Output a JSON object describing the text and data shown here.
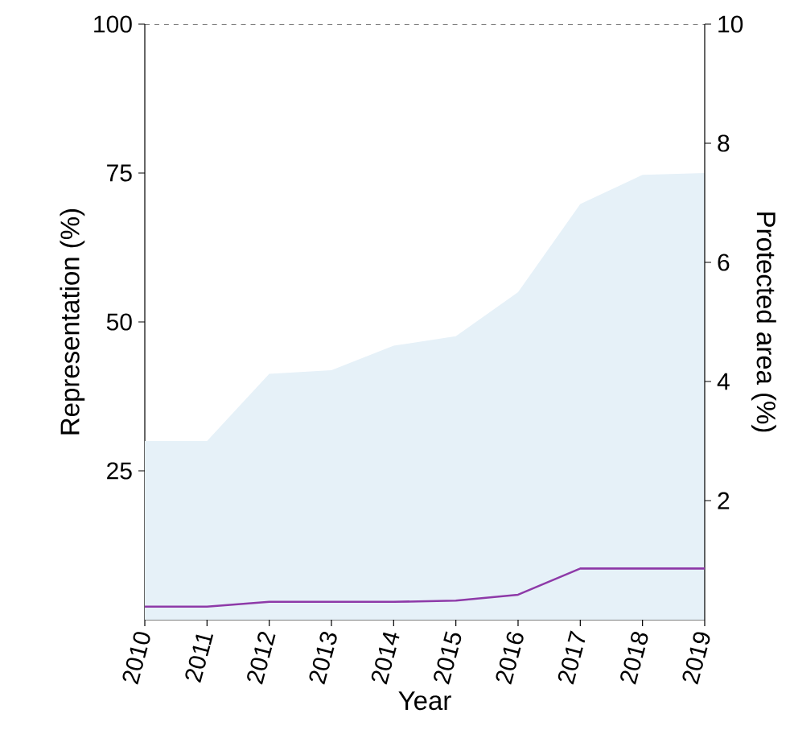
{
  "chart_data": {
    "type": "area",
    "xlabel": "Year",
    "ylabel": "Representation (%)",
    "y2label": "Protected area (%)",
    "x": [
      2010,
      2011,
      2012,
      2013,
      2014,
      2015,
      2016,
      2017,
      2018,
      2019
    ],
    "series": [
      {
        "color": "#e6f1f8",
        "values": [
          30,
          30,
          41.3,
          41.9,
          46,
          47.6,
          55,
          69.8,
          74.7,
          75
        ]
      },
      {
        "type": "line",
        "axis": "y2",
        "color": "#8e3aa8",
        "values": [
          0.22,
          0.22,
          0.3,
          0.3,
          0.3,
          0.32,
          0.42,
          0.86,
          0.86,
          0.86
        ]
      }
    ],
    "xlim": [
      2010,
      2019
    ],
    "xticks": [
      2010,
      2011,
      2012,
      2013,
      2014,
      2015,
      2016,
      2017,
      2018,
      2019
    ],
    "ylim": [
      0,
      100
    ],
    "yticks": [
      25,
      50,
      75,
      100
    ],
    "y2lim": [
      0,
      10
    ],
    "y2ticks": [
      2,
      4,
      6,
      8,
      10
    ],
    "grid": false,
    "marker": "none",
    "line_style": "solid"
  }
}
